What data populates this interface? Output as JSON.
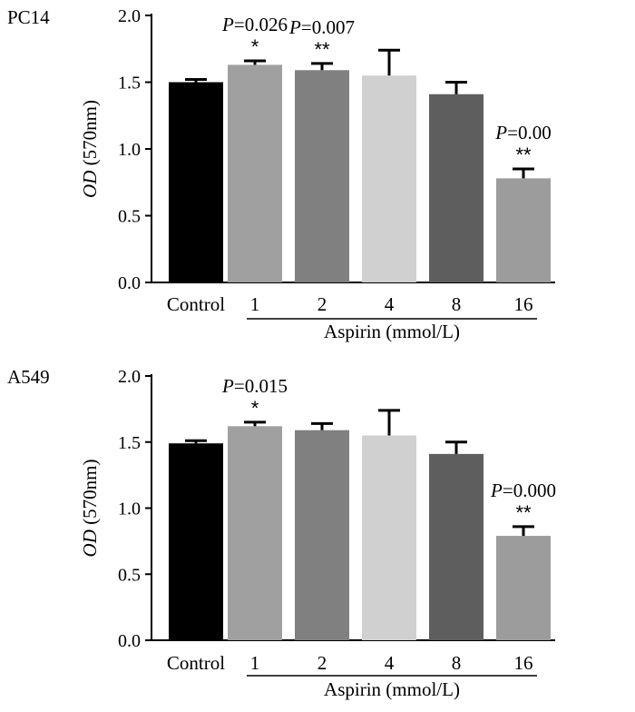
{
  "chart_data": [
    {
      "type": "bar",
      "panel_label": "PC14",
      "categories": [
        "Control",
        "1",
        "2",
        "4",
        "8",
        "16"
      ],
      "values": [
        1.5,
        1.63,
        1.59,
        1.55,
        1.41,
        0.78
      ],
      "errors": [
        0.02,
        0.03,
        0.05,
        0.19,
        0.09,
        0.07
      ],
      "colors": [
        "#000000",
        "#a0a0a0",
        "#808080",
        "#d0d0d0",
        "#5e5e5e",
        "#9c9c9c"
      ],
      "annotations": [
        {
          "index": 1,
          "p_italic": "P",
          "p_value": "=0.026",
          "stars": "*"
        },
        {
          "index": 2,
          "p_italic": "P",
          "p_value": "=0.007",
          "stars": "**"
        },
        {
          "index": 5,
          "p_italic": "P",
          "p_value": "=0.00",
          "stars": "**"
        }
      ],
      "ylabel_italic": "OD",
      "ylabel_rest": " (570nm)",
      "xgroup_label": "Aspirin (mmol/L)",
      "ylim": [
        0,
        2.0
      ],
      "yticks": [
        "0.0",
        "0.5",
        "1.0",
        "1.5",
        "2.0"
      ]
    },
    {
      "type": "bar",
      "panel_label": "A549",
      "categories": [
        "Control",
        "1",
        "2",
        "4",
        "8",
        "16"
      ],
      "values": [
        1.49,
        1.62,
        1.59,
        1.55,
        1.41,
        0.79
      ],
      "errors": [
        0.02,
        0.03,
        0.05,
        0.19,
        0.09,
        0.07
      ],
      "colors": [
        "#000000",
        "#a0a0a0",
        "#808080",
        "#d0d0d0",
        "#5e5e5e",
        "#9c9c9c"
      ],
      "annotations": [
        {
          "index": 1,
          "p_italic": "P",
          "p_value": "=0.015",
          "stars": "*"
        },
        {
          "index": 5,
          "p_italic": "P",
          "p_value": "=0.000",
          "stars": "**"
        }
      ],
      "ylabel_italic": "OD",
      "ylabel_rest": " (570nm)",
      "xgroup_label": "Aspirin (mmol/L)",
      "ylim": [
        0,
        2.0
      ],
      "yticks": [
        "0.0",
        "0.5",
        "1.0",
        "1.5",
        "2.0"
      ]
    }
  ]
}
